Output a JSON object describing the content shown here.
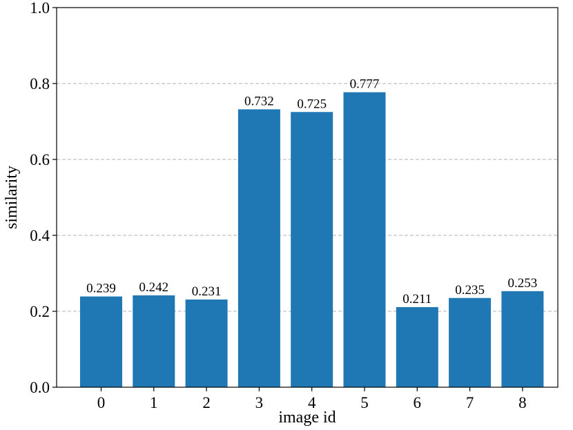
{
  "chart_data": {
    "type": "bar",
    "title": "",
    "xlabel": "image id",
    "ylabel": "similarity",
    "categories": [
      "0",
      "1",
      "2",
      "3",
      "4",
      "5",
      "6",
      "7",
      "8"
    ],
    "values": [
      0.239,
      0.242,
      0.231,
      0.732,
      0.725,
      0.777,
      0.211,
      0.235,
      0.253
    ],
    "data_labels": [
      "0.239",
      "0.242",
      "0.231",
      "0.732",
      "0.725",
      "0.777",
      "0.211",
      "0.235",
      "0.253"
    ],
    "ylim": [
      0,
      1.0
    ],
    "y_ticks": [
      "0.0",
      "0.2",
      "0.4",
      "0.6",
      "0.8",
      "1.0"
    ],
    "grid": "y-dashed",
    "legend": "none",
    "bar_color": "#1f77b4",
    "grid_color": "#b0b0b0"
  }
}
